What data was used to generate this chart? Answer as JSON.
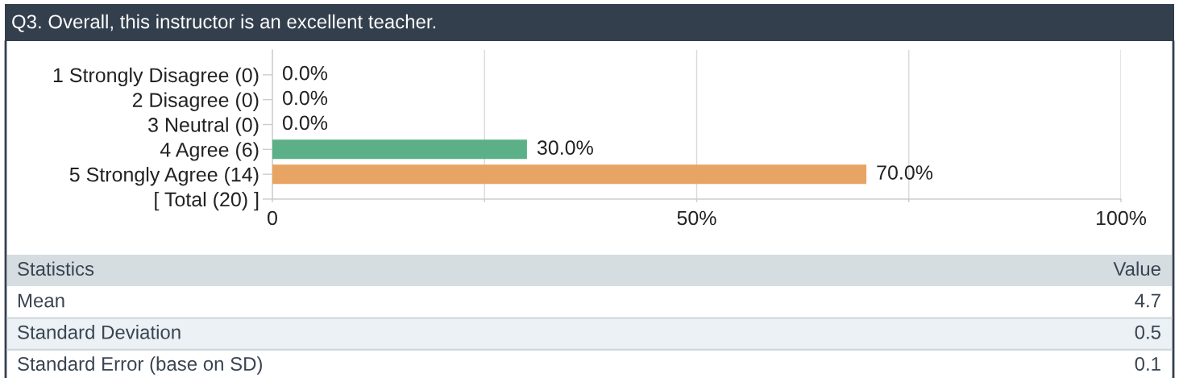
{
  "chart_data": {
    "type": "bar",
    "orientation": "horizontal",
    "title": "Q3. Overall, this instructor is an excellent teacher.",
    "categories": [
      "1 Strongly Disagree (0)",
      "2 Disagree (0)",
      "3 Neutral (0)",
      "4 Agree (6)",
      "5 Strongly Agree (14)",
      "[ Total (20) ]"
    ],
    "values": [
      0,
      0,
      0,
      30,
      70,
      null
    ],
    "colors": [
      null,
      null,
      null,
      "#5bb087",
      "#e8a462",
      null
    ],
    "value_labels": [
      "0.0%",
      "0.0%",
      "0.0%",
      "30.0%",
      "70.0%",
      null
    ],
    "xlim": [
      0,
      100
    ],
    "xticks": [
      0,
      {
        "value": 25,
        "label": null
      },
      {
        "value": 50,
        "label": "50%"
      },
      {
        "value": 75,
        "label": null
      },
      {
        "value": 100,
        "label": "100%"
      }
    ],
    "grid": "x",
    "annotations": [
      "Statistics",
      "Value",
      "Mean",
      "4.7",
      "Standard Deviation",
      "0.5",
      "Standard Error (base on SD)",
      "0.1"
    ]
  }
}
